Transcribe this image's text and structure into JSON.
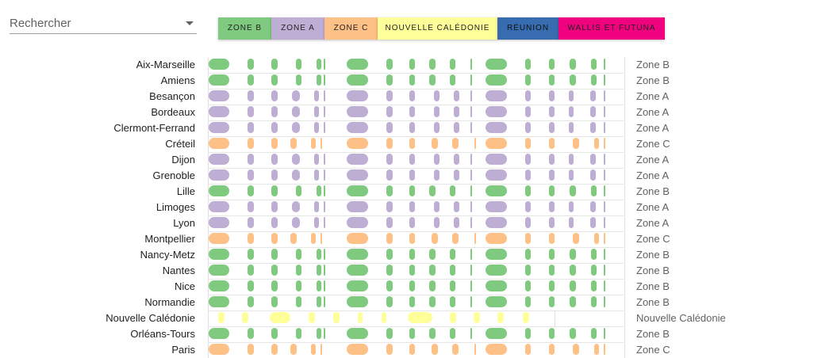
{
  "search": {
    "placeholder": "Rechercher"
  },
  "zones": [
    {
      "label": "ZONE B",
      "color": "#7fca7f"
    },
    {
      "label": "ZONE A",
      "color": "#beaed4"
    },
    {
      "label": "ZONE C",
      "color": "#fdc086"
    },
    {
      "label": "NOUVELLE CALÉDONIE",
      "color": "#ffff99"
    },
    {
      "label": "RÉUNION",
      "color": "#386cb0"
    },
    {
      "label": "WALLIS ET FUTUNA",
      "color": "#f0027f"
    }
  ],
  "rows": [
    {
      "city": "Aix-Marseille",
      "zone": "Zone B"
    },
    {
      "city": "Amiens",
      "zone": "Zone B"
    },
    {
      "city": "Besançon",
      "zone": "Zone A"
    },
    {
      "city": "Bordeaux",
      "zone": "Zone A"
    },
    {
      "city": "Clermont-Ferrand",
      "zone": "Zone A"
    },
    {
      "city": "Créteil",
      "zone": "Zone C"
    },
    {
      "city": "Dijon",
      "zone": "Zone A"
    },
    {
      "city": "Grenoble",
      "zone": "Zone A"
    },
    {
      "city": "Lille",
      "zone": "Zone B"
    },
    {
      "city": "Limoges",
      "zone": "Zone A"
    },
    {
      "city": "Lyon",
      "zone": "Zone A"
    },
    {
      "city": "Montpellier",
      "zone": "Zone C"
    },
    {
      "city": "Nancy-Metz",
      "zone": "Zone B"
    },
    {
      "city": "Nantes",
      "zone": "Zone B"
    },
    {
      "city": "Nice",
      "zone": "Zone B"
    },
    {
      "city": "Normandie",
      "zone": "Zone B"
    },
    {
      "city": "Nouvelle Calédonie",
      "zone": "Nouvelle Calédonie"
    },
    {
      "city": "Orléans-Tours",
      "zone": "Zone B"
    },
    {
      "city": "Paris",
      "zone": "Zone C"
    }
  ]
}
